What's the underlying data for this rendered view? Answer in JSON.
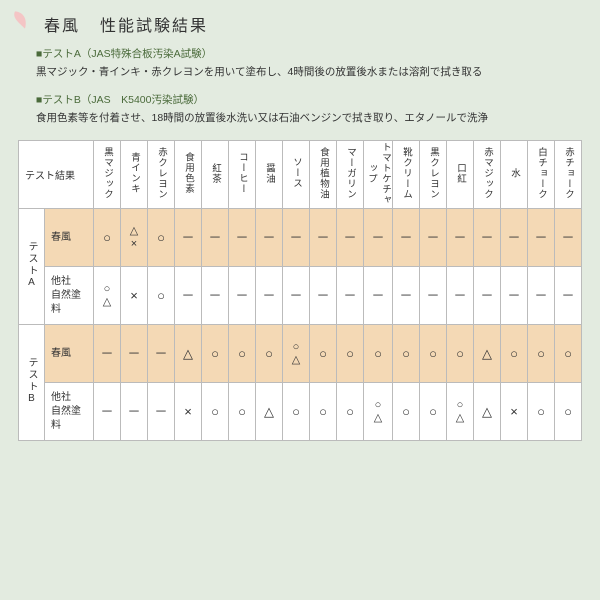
{
  "title": "春風",
  "subtitle": "性能試験結果",
  "testA": {
    "label": "■テストA（JAS特殊合板汚染A試験）",
    "desc": "黒マジック・青インキ・赤クレヨンを用いて塗布し、4時間後の放置後水または溶剤で拭き取る"
  },
  "testB": {
    "label": "■テストB（JAS　K5400汚染試験）",
    "desc": "食用色素等を付着させ、18時間の放置後水洗い又は石油ベンジンで拭き取り、エタノールで洗浄"
  },
  "corner": "テスト結果",
  "columns": [
    "黒マジック",
    "青インキ",
    "赤クレヨン",
    "食用色素",
    "紅茶",
    "コーヒー",
    "醤油",
    "ソース",
    "食用植物油",
    "マーガリン",
    "トマトケチャップ",
    "靴クリーム",
    "黒クレヨン",
    "口紅",
    "赤マジック",
    "水",
    "白チョーク",
    "赤チョーク"
  ],
  "groups": [
    {
      "name": "テストA",
      "rows": [
        {
          "product": "春風",
          "highlight": true,
          "cells": [
            "○",
            "△×",
            "○",
            "－",
            "－",
            "－",
            "－",
            "－",
            "－",
            "－",
            "－",
            "－",
            "－",
            "－",
            "－",
            "－",
            "－",
            "－"
          ]
        },
        {
          "product": "他社\n自然塗料",
          "highlight": false,
          "cells": [
            "○△",
            "×",
            "○",
            "－",
            "－",
            "－",
            "－",
            "－",
            "－",
            "－",
            "－",
            "－",
            "－",
            "－",
            "－",
            "－",
            "－",
            "－"
          ]
        }
      ]
    },
    {
      "name": "テストB",
      "rows": [
        {
          "product": "春風",
          "highlight": true,
          "cells": [
            "－",
            "－",
            "－",
            "△",
            "○",
            "○",
            "○",
            "○△",
            "○",
            "○",
            "○",
            "○",
            "○",
            "○",
            "△",
            "○",
            "○",
            "○"
          ]
        },
        {
          "product": "他社\n自然塗料",
          "highlight": false,
          "cells": [
            "－",
            "－",
            "－",
            "×",
            "○",
            "○",
            "△",
            "○",
            "○",
            "○",
            "○△",
            "○",
            "○",
            "○△",
            "△",
            "×",
            "○",
            "○"
          ]
        }
      ]
    }
  ],
  "colors": {
    "bg": "#e3ebe0",
    "hl": "#f4d9b5",
    "petal": "#f4c5c5"
  }
}
